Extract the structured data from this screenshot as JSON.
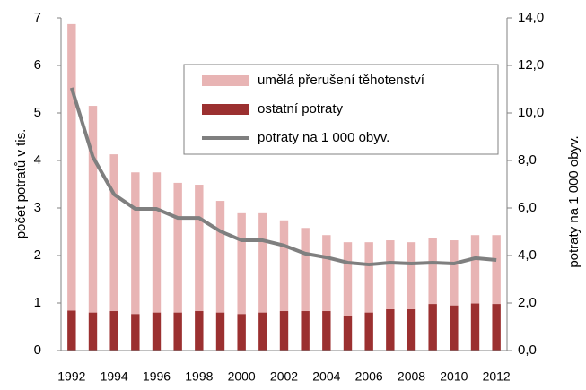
{
  "chart_data": {
    "type": "bar",
    "stacked": true,
    "categories": [
      "1992",
      null,
      "1994",
      null,
      "1996",
      null,
      "1998",
      null,
      "2000",
      null,
      "2002",
      null,
      "2004",
      null,
      "2006",
      null,
      "2008",
      null,
      "2010",
      null,
      "2012"
    ],
    "series": [
      {
        "name": "umělá přerušení těhotenství",
        "type": "bar",
        "color": "#e8b4b4",
        "values": [
          6.03,
          4.35,
          3.3,
          2.98,
          2.95,
          2.73,
          2.66,
          2.35,
          2.12,
          2.09,
          1.91,
          1.75,
          1.6,
          1.55,
          1.48,
          1.45,
          1.41,
          1.38,
          1.37,
          1.44,
          1.45
        ]
      },
      {
        "name": "ostatní potraty",
        "type": "bar",
        "color": "#9b3030",
        "values": [
          0.84,
          0.8,
          0.83,
          0.77,
          0.8,
          0.8,
          0.83,
          0.8,
          0.77,
          0.8,
          0.83,
          0.83,
          0.83,
          0.73,
          0.8,
          0.87,
          0.87,
          0.98,
          0.95,
          0.99,
          0.98
        ]
      },
      {
        "name": "potraty na 1 000 obyv.",
        "type": "line",
        "axis": "y2",
        "color": "#7f7f7f",
        "values": [
          11.06,
          8.15,
          6.57,
          5.96,
          5.96,
          5.58,
          5.58,
          5.02,
          4.64,
          4.64,
          4.42,
          4.08,
          3.92,
          3.7,
          3.62,
          3.7,
          3.66,
          3.7,
          3.66,
          3.89,
          3.81
        ]
      }
    ],
    "ylabel": "počet potratů v tis.",
    "y2label": "potraty na 1 000 obyv.",
    "ylim": [
      0,
      7
    ],
    "yticks": [
      0,
      1,
      2,
      3,
      4,
      5,
      6,
      7
    ],
    "y2lim": [
      0,
      14
    ],
    "y2ticks": [
      {
        "value": 0,
        "label": "0,0"
      },
      {
        "value": 2,
        "label": "2,0"
      },
      {
        "value": 4,
        "label": "4,0"
      },
      {
        "value": 6,
        "label": "6,0"
      },
      {
        "value": 8,
        "label": "8,0"
      },
      {
        "value": 10,
        "label": "10,0"
      },
      {
        "value": 12,
        "label": "12,0"
      },
      {
        "value": 14,
        "label": "14,0"
      }
    ],
    "grid": false,
    "legend": "upper right"
  }
}
